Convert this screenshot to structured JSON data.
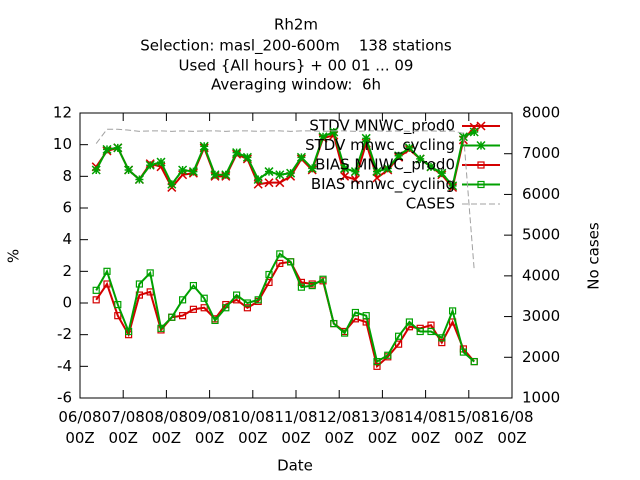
{
  "chart_data": {
    "type": "line",
    "title": "Rh2m",
    "subtitle": [
      "Selection: masl_200-600m    138 stations",
      "Used {All hours} + 00 01 ... 09",
      "Averaging window:  6h"
    ],
    "x_label": "Date",
    "y_label": "%",
    "y2_label": "No cases",
    "x": [
      9,
      15,
      21,
      27,
      33,
      39,
      45,
      51,
      57,
      63,
      69,
      75,
      81,
      87,
      93,
      99,
      105,
      111,
      117,
      123,
      129,
      135,
      141,
      147,
      153,
      159,
      165,
      171,
      177,
      183,
      189,
      195,
      201,
      207,
      213,
      219
    ],
    "xlim": [
      0,
      240
    ],
    "xticks": [
      {
        "value": 0,
        "label": "06/08\n00Z"
      },
      {
        "value": 24,
        "label": "07/08\n00Z"
      },
      {
        "value": 48,
        "label": "08/08\n00Z"
      },
      {
        "value": 72,
        "label": "09/08\n00Z"
      },
      {
        "value": 96,
        "label": "10/08\n00Z"
      },
      {
        "value": 120,
        "label": "11/08\n00Z"
      },
      {
        "value": 144,
        "label": "12/08\n00Z"
      },
      {
        "value": 168,
        "label": "13/08\n00Z"
      },
      {
        "value": 192,
        "label": "14/08\n00Z"
      },
      {
        "value": 216,
        "label": "15/08\n00Z"
      },
      {
        "value": 240,
        "label": "16/08\n00Z"
      }
    ],
    "ylim": [
      -6,
      12
    ],
    "yticks": [
      -6,
      -4,
      -2,
      0,
      2,
      4,
      6,
      8,
      10,
      12
    ],
    "y2lim": [
      1000,
      8000
    ],
    "y2ticks": [
      1000,
      2000,
      3000,
      4000,
      5000,
      6000,
      7000,
      8000
    ],
    "legend": "top-right",
    "series": [
      {
        "name": "STDV MNWC_prod0",
        "color": "#d40000",
        "marker": "x",
        "values": [
          8.6,
          9.6,
          9.8,
          8.4,
          7.8,
          8.8,
          8.6,
          7.3,
          8.1,
          8.2,
          9.8,
          8.0,
          8.0,
          9.4,
          9.1,
          7.5,
          7.6,
          7.6,
          8.0,
          9.1,
          8.4,
          10.4,
          10.6,
          8.0,
          7.8,
          10.1,
          7.9,
          8.4,
          9.2,
          9.7,
          9.1,
          8.6,
          8.1,
          7.3,
          10.3,
          11.1
        ]
      },
      {
        "name": "STDV mnwc_cycling",
        "color": "#00a000",
        "marker": "star",
        "values": [
          8.4,
          9.7,
          9.8,
          8.4,
          7.8,
          8.7,
          8.9,
          7.5,
          8.4,
          8.3,
          9.9,
          8.1,
          8.1,
          9.5,
          9.2,
          7.8,
          8.3,
          8.1,
          8.2,
          9.2,
          8.5,
          10.5,
          10.8,
          8.5,
          8.3,
          10.4,
          8.3,
          8.5,
          9.3,
          9.8,
          9.1,
          8.6,
          8.2,
          7.4,
          10.5,
          10.8
        ]
      },
      {
        "name": "BIAS MNWC_prod0",
        "color": "#d40000",
        "marker": "square",
        "values": [
          0.2,
          1.2,
          -0.8,
          -2.0,
          0.5,
          0.7,
          -1.7,
          -0.9,
          -0.8,
          -0.4,
          -0.3,
          -1.0,
          -0.1,
          0.2,
          -0.3,
          0.1,
          1.3,
          2.5,
          2.6,
          1.3,
          1.2,
          1.4,
          -1.3,
          -1.8,
          -1.0,
          -1.2,
          -4.0,
          -3.4,
          -2.6,
          -1.5,
          -1.6,
          -1.4,
          -2.5,
          -1.2,
          -2.9,
          -3.7
        ]
      },
      {
        "name": "BIAS mnwc_cycling",
        "color": "#00a000",
        "marker": "square",
        "values": [
          0.8,
          2.0,
          -0.1,
          -1.8,
          1.2,
          1.9,
          -1.6,
          -0.9,
          0.2,
          1.1,
          0.3,
          -1.1,
          -0.3,
          0.5,
          0.0,
          0.2,
          1.8,
          3.1,
          2.6,
          1.0,
          1.1,
          1.5,
          -1.3,
          -1.9,
          -0.6,
          -0.8,
          -3.7,
          -3.3,
          -2.1,
          -1.2,
          -1.8,
          -1.8,
          -2.2,
          -0.5,
          -3.1,
          -3.7
        ]
      },
      {
        "name": "CASES",
        "color": "#a0a0a0",
        "axis": "y2",
        "dash": true,
        "values": [
          7250,
          7600,
          7600,
          7580,
          7550,
          7560,
          7560,
          7550,
          7560,
          7550,
          7560,
          7560,
          7550,
          7560,
          7560,
          7550,
          7560,
          7560,
          7550,
          7560,
          7560,
          7550,
          7560,
          7560,
          7550,
          7560,
          7560,
          7550,
          7560,
          7550,
          7560,
          7560,
          7550,
          7560,
          7500,
          4150
        ]
      }
    ]
  }
}
